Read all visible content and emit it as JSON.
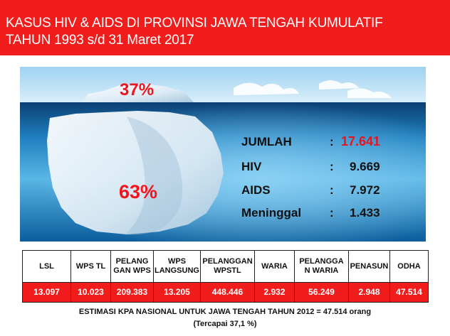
{
  "header": {
    "title_line1": "KASUS HIV & AIDS DI PROVINSI JAWA TENGAH KUMULATIF",
    "title_line2": "TAHUN 1993 s/d 31 Maret 2017"
  },
  "iceberg": {
    "above_pct": "37%",
    "below_pct": "63%"
  },
  "stats": [
    {
      "label": "JUMLAH",
      "colon": ":",
      "value": "17.641"
    },
    {
      "label": "HIV",
      "colon": ":",
      "value": "9.669"
    },
    {
      "label": "AIDS",
      "colon": ":",
      "value": "7.972"
    },
    {
      "label": "Meninggal",
      "colon": ":",
      "value": "1.433"
    }
  ],
  "table": {
    "headers": [
      [
        "LSL"
      ],
      [
        "WPS TL"
      ],
      [
        "PELANG",
        "GAN WPS"
      ],
      [
        "WPS",
        "LANGSUNG"
      ],
      [
        "PELANGGAN",
        "WPSTL"
      ],
      [
        "WARIA"
      ],
      [
        "PELANGGA",
        "N WARIA"
      ],
      [
        "PENASUN"
      ],
      [
        "ODHA"
      ]
    ],
    "values": [
      "13.097",
      "10.023",
      "209.383",
      "13.205",
      "448.446",
      "2.932",
      "56.249",
      "2.948",
      "47.514"
    ]
  },
  "footer": {
    "line1": "ESTIMASI KPA NASIONAL UNTUK JAWA TENGAH TAHUN 2012 = 47.514 orang",
    "line2": "(Tercapai 37,1 %)"
  },
  "colors": {
    "header_red": "#f11d1d",
    "accent_red": "#e8141d",
    "sea_deep": "#0a4f86",
    "sea_light": "#5fb6e6"
  }
}
